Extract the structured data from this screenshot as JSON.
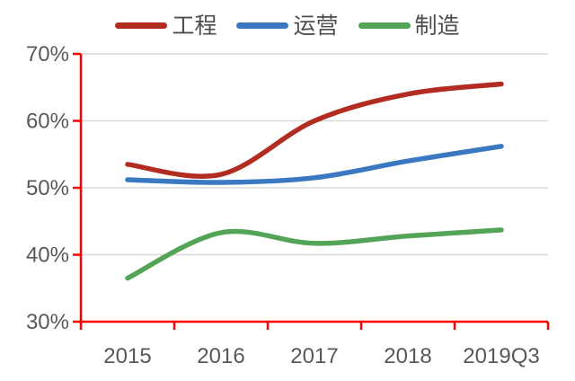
{
  "chart_data": {
    "type": "line",
    "title": "",
    "x_categories": [
      "2015",
      "2016",
      "2017",
      "2018",
      "2019Q3"
    ],
    "series": [
      {
        "key": "engineering",
        "name": "工程",
        "color": "#B22C22",
        "values": [
          53.5,
          52.0,
          60.0,
          64.0,
          65.5
        ]
      },
      {
        "key": "operations",
        "name": "运营",
        "color": "#3B78C2",
        "values": [
          51.2,
          50.8,
          51.5,
          54.0,
          56.2
        ]
      },
      {
        "key": "manufacturing",
        "name": "制造",
        "color": "#54A457",
        "values": [
          36.5,
          43.3,
          41.7,
          42.8,
          43.7
        ]
      }
    ],
    "ylim": [
      30,
      70
    ],
    "yticks": [
      30,
      40,
      50,
      60,
      70
    ],
    "ytick_labels": [
      "30%",
      "40%",
      "50%",
      "60%",
      "70%"
    ],
    "ytick_format": "percent",
    "grid": true,
    "smooth_lines": true,
    "legend_position": "top",
    "axis_color": "#FF0000",
    "gridline_color": "#D9D9D9",
    "tick_label_color": "#595959"
  }
}
